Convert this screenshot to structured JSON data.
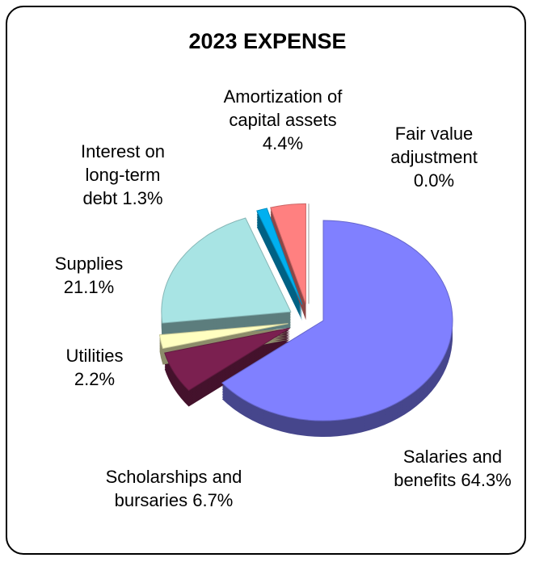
{
  "chart_data": {
    "type": "pie",
    "title": "2023 EXPENSE",
    "categories": [
      "Salaries and benefits",
      "Scholarships and bursaries",
      "Utilities",
      "Supplies",
      "Interest on long-term debt",
      "Amortization of capital assets",
      "Fair value adjustment"
    ],
    "values": [
      64.3,
      6.7,
      2.2,
      21.1,
      1.3,
      4.4,
      0.0
    ],
    "value_labels": [
      "64.3%",
      "6.7%",
      "2.2%",
      "21.1%",
      "1.3%",
      "4.4%",
      "0.0%"
    ],
    "colors": [
      "#8080ff",
      "#7b2050",
      "#ffffc0",
      "#a8e4e4",
      "#00b0f0",
      "#ff8080",
      "#c0c0c0"
    ]
  }
}
